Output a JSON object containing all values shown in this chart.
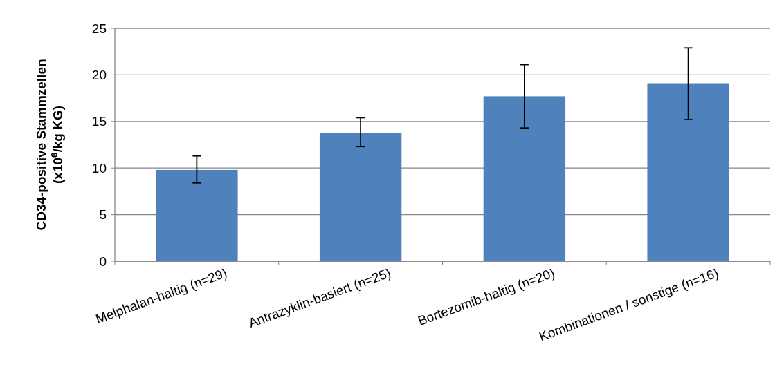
{
  "chart_data": {
    "type": "bar",
    "ylabel": "CD34-positive Stammzellen (x10$^{6}$/kg KG)",
    "categories": [
      "Melphalan-haltig (n=29)",
      "Antrazyklin-basiert (n=25)",
      "Bortezomib-haltig (n=20)",
      "Kombinationen / sonstige (n=16)"
    ],
    "values": [
      9.8,
      13.8,
      17.7,
      19.1
    ],
    "errors": [
      [
        8.4,
        11.3
      ],
      [
        12.3,
        15.4
      ],
      [
        14.3,
        21.1
      ],
      [
        15.2,
        22.9
      ]
    ],
    "color": "#4f81bd",
    "ylim": [
      0,
      25
    ],
    "yticks": [
      0,
      5,
      10,
      15,
      20,
      25
    ],
    "grid": "y"
  }
}
